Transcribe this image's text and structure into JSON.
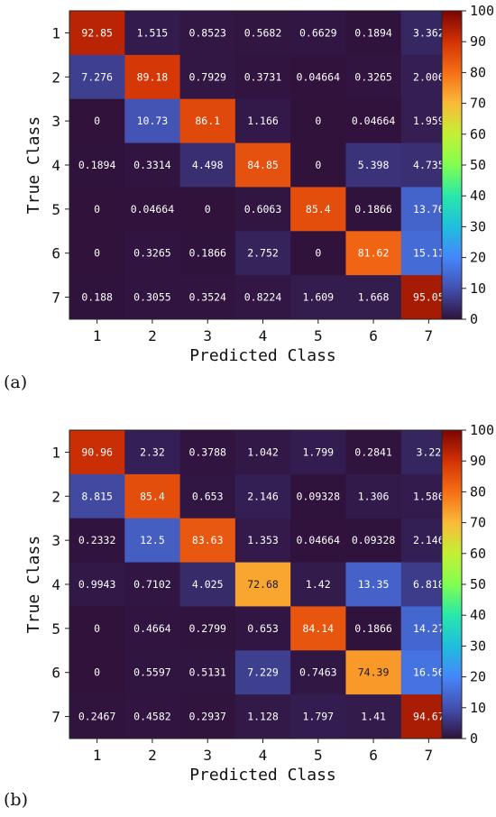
{
  "chart_data": [
    {
      "type": "heatmap",
      "panel_label": "(a)",
      "xlabel": "Predicted Class",
      "ylabel": "True Class",
      "x_categories": [
        "1",
        "2",
        "3",
        "4",
        "5",
        "6",
        "7"
      ],
      "y_categories": [
        "1",
        "2",
        "3",
        "4",
        "5",
        "6",
        "7"
      ],
      "colorbar": {
        "range": [
          0,
          100
        ],
        "ticks": [
          "0",
          "10",
          "20",
          "30",
          "40",
          "50",
          "60",
          "70",
          "80",
          "90",
          "100"
        ]
      },
      "values": [
        [
          "92.85",
          "1.515",
          "0.8523",
          "0.5682",
          "0.6629",
          "0.1894",
          "3.362"
        ],
        [
          "7.276",
          "89.18",
          "0.7929",
          "0.3731",
          "0.04664",
          "0.3265",
          "2.006"
        ],
        [
          "0",
          "10.73",
          "86.1",
          "1.166",
          "0",
          "0.04664",
          "1.959"
        ],
        [
          "0.1894",
          "0.3314",
          "4.498",
          "84.85",
          "0",
          "5.398",
          "4.735"
        ],
        [
          "0",
          "0.04664",
          "0",
          "0.6063",
          "85.4",
          "0.1866",
          "13.76"
        ],
        [
          "0",
          "0.3265",
          "0.1866",
          "2.752",
          "0",
          "81.62",
          "15.11"
        ],
        [
          "0.188",
          "0.3055",
          "0.3524",
          "0.8224",
          "1.609",
          "1.668",
          "95.05"
        ]
      ]
    },
    {
      "type": "heatmap",
      "panel_label": "(b)",
      "xlabel": "Predicted Class",
      "ylabel": "True Class",
      "x_categories": [
        "1",
        "2",
        "3",
        "4",
        "5",
        "6",
        "7"
      ],
      "y_categories": [
        "1",
        "2",
        "3",
        "4",
        "5",
        "6",
        "7"
      ],
      "colorbar": {
        "range": [
          0,
          100
        ],
        "ticks": [
          "0",
          "10",
          "20",
          "30",
          "40",
          "50",
          "60",
          "70",
          "80",
          "90",
          "100"
        ]
      },
      "values": [
        [
          "90.96",
          "2.32",
          "0.3788",
          "1.042",
          "1.799",
          "0.2841",
          "3.22"
        ],
        [
          "8.815",
          "85.4",
          "0.653",
          "2.146",
          "0.09328",
          "1.306",
          "1.586"
        ],
        [
          "0.2332",
          "12.5",
          "83.63",
          "1.353",
          "0.04664",
          "0.09328",
          "2.146"
        ],
        [
          "0.9943",
          "0.7102",
          "4.025",
          "72.68",
          "1.42",
          "13.35",
          "6.818"
        ],
        [
          "0",
          "0.4664",
          "0.2799",
          "0.653",
          "84.14",
          "0.1866",
          "14.27"
        ],
        [
          "0",
          "0.5597",
          "0.5131",
          "7.229",
          "0.7463",
          "74.39",
          "16.56"
        ],
        [
          "0.2467",
          "0.4582",
          "0.2937",
          "1.128",
          "1.797",
          "1.41",
          "94.67"
        ]
      ]
    }
  ]
}
